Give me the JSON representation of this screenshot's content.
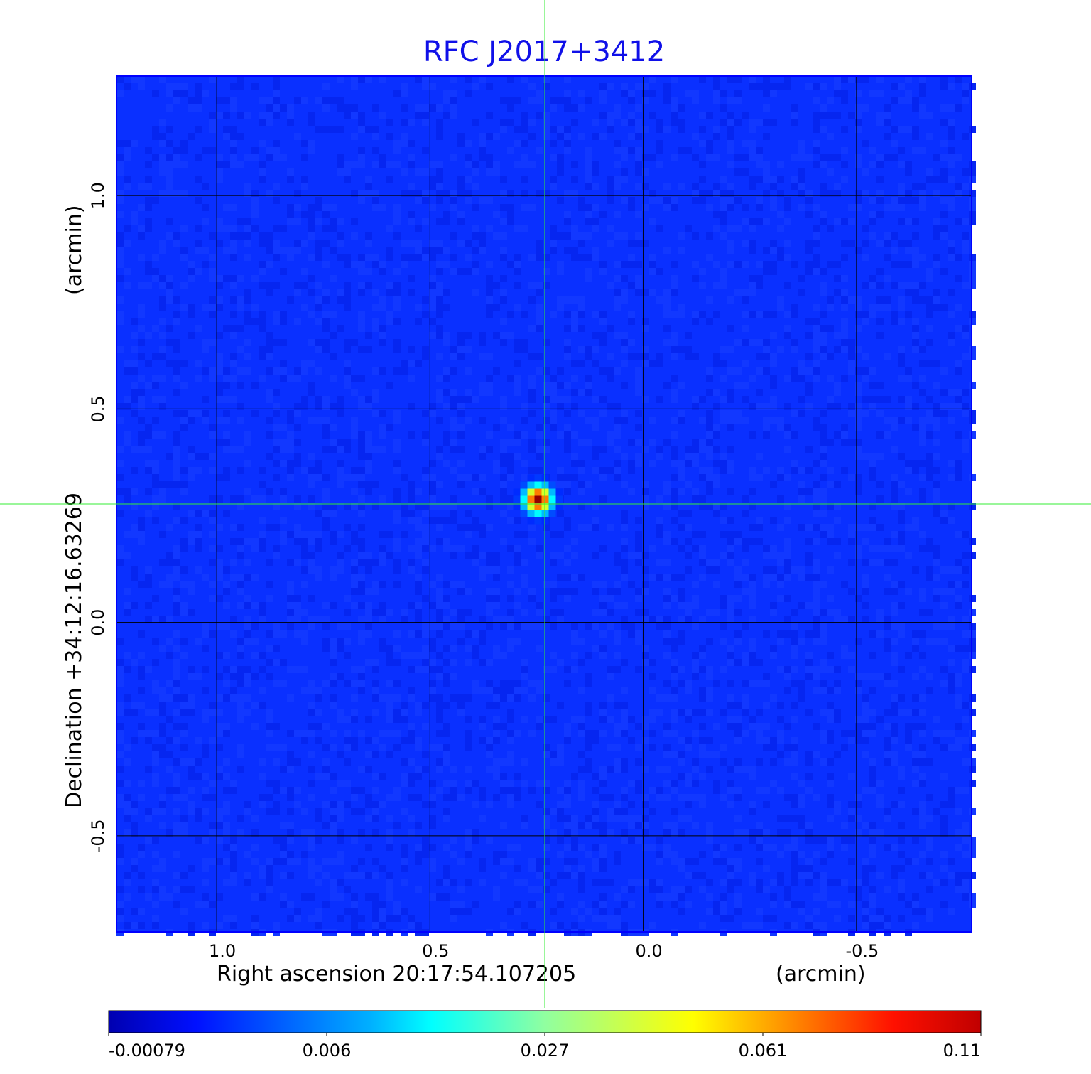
{
  "chart_data": {
    "type": "heatmap",
    "title": "RFC J2017+3412",
    "xlabel": "Right ascension  20:17:54.107205",
    "xunit": "(arcmin)",
    "ylabel": "Declination  +34:12:16.63269",
    "yunit": "(arcmin)",
    "x_ticks": [
      "1.0",
      "0.5",
      "0.0",
      "-0.5"
    ],
    "y_ticks": [
      "1.0",
      "0.5",
      "0.0",
      "-0.5"
    ],
    "x_tick_values": [
      1.0,
      0.5,
      0.0,
      -0.5
    ],
    "y_tick_values": [
      1.0,
      0.5,
      0.0,
      -0.5
    ],
    "xlim": [
      1.235,
      -0.77
    ],
    "ylim": [
      -0.725,
      1.28
    ],
    "grid": true,
    "colormap": "jet",
    "colorbar_ticks": [
      "-0.00079",
      "0.006",
      "0.027",
      "0.061",
      "0.11"
    ],
    "colorbar_range": [
      -0.00079,
      0.11
    ],
    "source": {
      "x": 0.23,
      "y": 0.28,
      "peak": 0.11
    },
    "crosshair": {
      "x": 0.23,
      "y": 0.28
    },
    "colors": {
      "title": "#1010e8",
      "crosshair": "#33ee33",
      "background": "#0a30ff",
      "grid": "#000000"
    }
  }
}
